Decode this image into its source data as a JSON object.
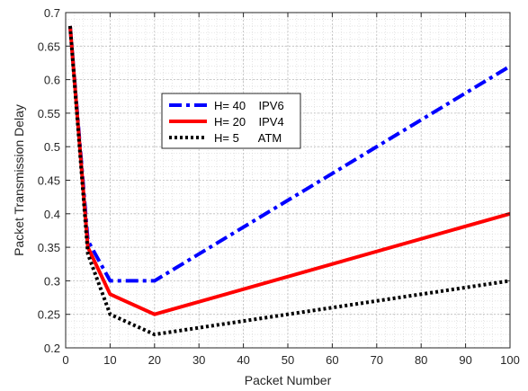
{
  "chart_data": {
    "type": "line",
    "title": "",
    "xlabel": "Packet Number",
    "ylabel": "Packet Transmission Delay",
    "xlim": [
      0,
      100
    ],
    "ylim": [
      0.2,
      0.7
    ],
    "xticks": [
      0,
      10,
      20,
      30,
      40,
      50,
      60,
      70,
      80,
      90,
      100
    ],
    "yticks": [
      0.2,
      0.25,
      0.3,
      0.35,
      0.4,
      0.45,
      0.5,
      0.55,
      0.6,
      0.65,
      0.7
    ],
    "xtick_labels": [
      "0",
      "10",
      "20",
      "30",
      "40",
      "50",
      "60",
      "70",
      "80",
      "90",
      "100"
    ],
    "ytick_labels": [
      "0.2",
      "0.25",
      "0.3",
      "0.35",
      "0.4",
      "0.45",
      "0.5",
      "0.55",
      "0.6",
      "0.65",
      "0.7"
    ],
    "grid": true,
    "legend_position": "upper-left-center",
    "series": [
      {
        "name": "H= 40    IPV6",
        "color": "#0000ff",
        "style": "dashdot",
        "x": [
          1,
          5,
          10,
          20,
          100
        ],
        "y": [
          0.68,
          0.36,
          0.3,
          0.3,
          0.62
        ]
      },
      {
        "name": "H= 20    IPV4",
        "color": "#ff0000",
        "style": "solid",
        "x": [
          1,
          5,
          10,
          20,
          100
        ],
        "y": [
          0.68,
          0.35,
          0.28,
          0.25,
          0.4
        ]
      },
      {
        "name": "H= 5      ATM",
        "color": "#000000",
        "style": "dotted",
        "x": [
          1,
          5,
          10,
          20,
          100
        ],
        "y": [
          0.68,
          0.34,
          0.25,
          0.22,
          0.3
        ]
      }
    ]
  }
}
